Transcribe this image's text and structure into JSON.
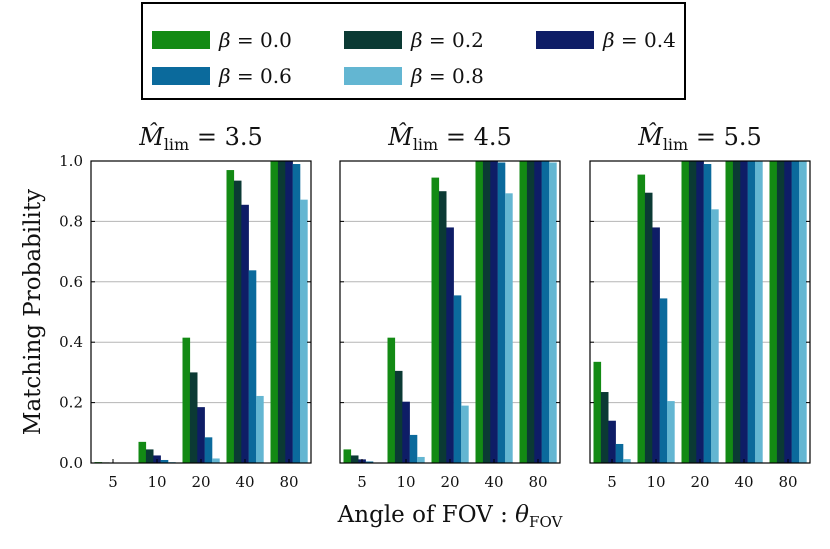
{
  "chart_data": {
    "type": "bar",
    "ylabel": "Matching Probability",
    "xlabel_main": "Angle of FOV : ",
    "xlabel_symbol": "θ",
    "xlabel_sub": "FOV",
    "ylim": [
      0,
      1.0
    ],
    "yticks": [
      "0.0",
      "0.2",
      "0.4",
      "0.6",
      "0.8",
      "1.0"
    ],
    "yticks_values": [
      0,
      0.2,
      0.4,
      0.6,
      0.8,
      1.0
    ],
    "categories": [
      "5",
      "10",
      "20",
      "40",
      "80"
    ],
    "colors": [
      "#138a14",
      "#0b3a34",
      "#0e1d66",
      "#0b6a9c",
      "#63b6d2"
    ],
    "legend": [
      {
        "symbol": "β",
        "text": " = 0.0"
      },
      {
        "symbol": "β",
        "text": " = 0.2"
      },
      {
        "symbol": "β",
        "text": " = 0.4"
      },
      {
        "symbol": "β",
        "text": " = 0.6"
      },
      {
        "symbol": "β",
        "text": " = 0.8"
      }
    ],
    "panels": [
      {
        "title_symbol": "M̂",
        "title_sub": "lim",
        "title_value": " = 3.5",
        "series": [
          {
            "name": "β=0.0",
            "values": [
              0.003,
              0.07,
              0.415,
              0.97,
              1.0
            ]
          },
          {
            "name": "β=0.2",
            "values": [
              0.002,
              0.045,
              0.3,
              0.935,
              1.0
            ]
          },
          {
            "name": "β=0.4",
            "values": [
              0.001,
              0.025,
              0.185,
              0.855,
              1.0
            ]
          },
          {
            "name": "β=0.6",
            "values": [
              0.0,
              0.01,
              0.085,
              0.638,
              0.99
            ]
          },
          {
            "name": "β=0.8",
            "values": [
              0.0,
              0.003,
              0.015,
              0.222,
              0.872
            ]
          }
        ]
      },
      {
        "title_symbol": "M̂",
        "title_sub": "lim",
        "title_value": " = 4.5",
        "series": [
          {
            "name": "β=0.0",
            "values": [
              0.045,
              0.415,
              0.945,
              1.0,
              1.0
            ]
          },
          {
            "name": "β=0.2",
            "values": [
              0.025,
              0.305,
              0.9,
              1.0,
              1.0
            ]
          },
          {
            "name": "β=0.4",
            "values": [
              0.012,
              0.203,
              0.78,
              1.0,
              1.0
            ]
          },
          {
            "name": "β=0.6",
            "values": [
              0.005,
              0.093,
              0.555,
              0.995,
              1.0
            ]
          },
          {
            "name": "β=0.8",
            "values": [
              0.001,
              0.02,
              0.19,
              0.893,
              0.995
            ]
          }
        ]
      },
      {
        "title_symbol": "M̂",
        "title_sub": "lim",
        "title_value": " = 5.5",
        "series": [
          {
            "name": "β=0.0",
            "values": [
              0.335,
              0.955,
              1.0,
              1.0,
              1.0
            ]
          },
          {
            "name": "β=0.2",
            "values": [
              0.235,
              0.895,
              1.0,
              1.0,
              1.0
            ]
          },
          {
            "name": "β=0.4",
            "values": [
              0.14,
              0.78,
              1.0,
              1.0,
              1.0
            ]
          },
          {
            "name": "β=0.6",
            "values": [
              0.063,
              0.545,
              0.99,
              1.0,
              1.0
            ]
          },
          {
            "name": "β=0.8",
            "values": [
              0.013,
              0.205,
              0.84,
              1.0,
              1.0
            ]
          }
        ]
      }
    ]
  }
}
